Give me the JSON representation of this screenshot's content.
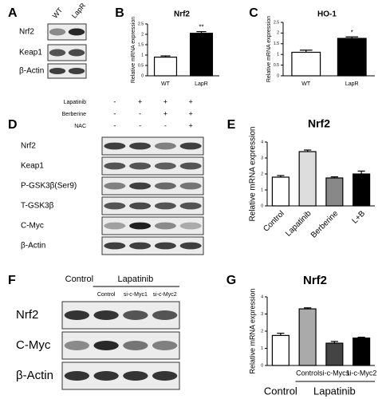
{
  "chart_data": [
    {
      "type": "bar",
      "panel": "B",
      "title": "Nrf2",
      "ylabel": "Relative mRNA expression",
      "categories": [
        "WT",
        "LapR"
      ],
      "values": [
        0.9,
        2.05
      ],
      "errors": [
        0.06,
        0.08
      ],
      "colors": [
        "#ffffff",
        "#000000"
      ],
      "ylim": [
        0,
        2.5
      ],
      "yticks": [
        0,
        0.5,
        1,
        1.5,
        2,
        2.5
      ],
      "annotations": [
        {
          "text": "**",
          "category": 1
        }
      ]
    },
    {
      "type": "bar",
      "panel": "C",
      "title": "HO-1",
      "ylabel": "Relative mRNA expression",
      "categories": [
        "WT",
        "LapR"
      ],
      "values": [
        1.1,
        1.75
      ],
      "errors": [
        0.1,
        0.07
      ],
      "colors": [
        "#ffffff",
        "#000000"
      ],
      "ylim": [
        0,
        2.5
      ],
      "yticks": [
        0,
        0.5,
        1,
        1.5,
        2,
        2.5
      ],
      "annotations": [
        {
          "text": "*",
          "category": 1
        }
      ]
    },
    {
      "type": "bar",
      "panel": "E",
      "title": "Nrf2",
      "ylabel": "Relative mRNA expression",
      "categories": [
        "Control",
        "Lapatinib",
        "Berberine",
        "L+B"
      ],
      "values": [
        1.8,
        3.4,
        1.75,
        2.0
      ],
      "errors": [
        0.1,
        0.1,
        0.07,
        0.18
      ],
      "colors": [
        "#ffffff",
        "#dddddd",
        "#888888",
        "#000000"
      ],
      "ylim": [
        0,
        4
      ],
      "yticks": [
        0,
        1,
        2,
        3,
        4
      ],
      "xtick_rotation": 45
    },
    {
      "type": "bar",
      "panel": "G",
      "title": "Nrf2",
      "ylabel": "Relative mRNA expression",
      "categories": [
        null,
        "Control",
        "si-c-Myc1",
        "si-c-Myc2"
      ],
      "values": [
        1.75,
        3.3,
        1.3,
        1.6
      ],
      "errors": [
        0.13,
        0.06,
        0.1,
        0.05
      ],
      "colors": [
        "#ffffff",
        "#aaaaaa",
        "#444444",
        "#000000"
      ],
      "ylim": [
        0,
        4
      ],
      "yticks": [
        0,
        1,
        2,
        3,
        4
      ],
      "x_groups": [
        "Control",
        "Lapatinib"
      ]
    }
  ],
  "blots": [
    {
      "panel": "A",
      "columns": [
        "WT",
        "LapR"
      ],
      "rows": [
        "Nrf2",
        "Keap1",
        "β-Actin"
      ]
    },
    {
      "panel": "D",
      "treatments": [
        {
          "name": "Lapatinib",
          "signs": [
            "-",
            "+",
            "+",
            "+"
          ]
        },
        {
          "name": "Berberine",
          "signs": [
            "-",
            "-",
            "+",
            "+"
          ]
        },
        {
          "name": "NAC",
          "signs": [
            "-",
            "-",
            "-",
            "+"
          ]
        }
      ],
      "rows": [
        "Nrf2",
        "Keap1",
        "P-GSK3β(Ser9)",
        "T-GSK3β",
        "C-Myc",
        "β-Actin"
      ]
    },
    {
      "panel": "F",
      "headers": [
        "Control",
        "Lapatinib"
      ],
      "columns": [
        "Control",
        "si-c-Myc1",
        "si-c-Myc2"
      ],
      "rows": [
        "Nrf2",
        "C-Myc",
        "β-Actin"
      ]
    }
  ]
}
